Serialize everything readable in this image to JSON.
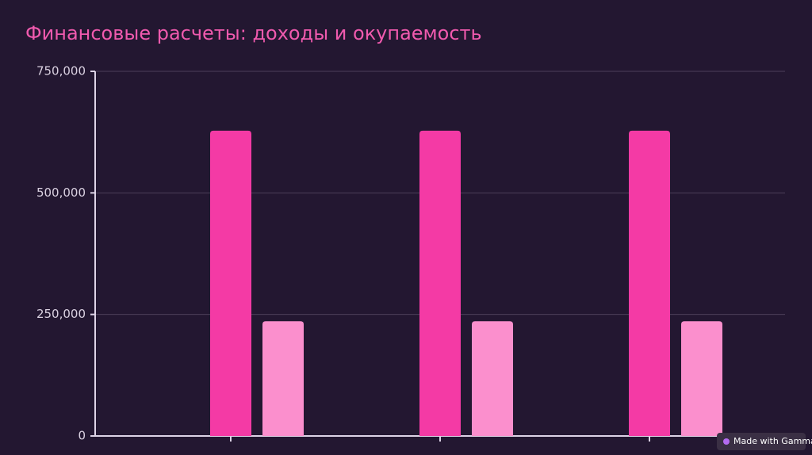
{
  "chart_data": {
    "type": "bar",
    "title": "Финансовые расчеты: доходы и окупаемость",
    "categories": [
      null,
      null,
      null
    ],
    "series": [
      {
        "color": "#f43aa5",
        "values": [
          628000,
          628000,
          628000
        ]
      },
      {
        "color": "#fb8fcd",
        "values": [
          236000,
          236000,
          236000
        ]
      }
    ],
    "ylim": [
      0,
      750000
    ],
    "yticks": [
      0,
      {
        "value": 250000,
        "label": "250,000"
      },
      {
        "value": 500000,
        "label": "500,000"
      },
      {
        "value": 750000,
        "label": "750,000"
      }
    ],
    "grid": true
  },
  "badge": "Made with Gamma"
}
